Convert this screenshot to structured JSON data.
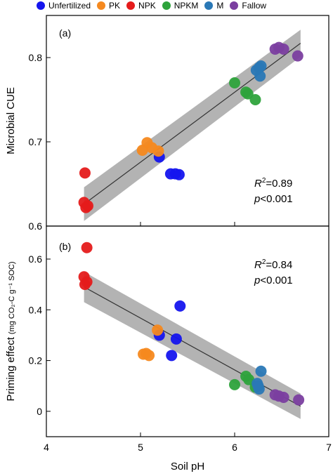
{
  "legend": {
    "items": [
      {
        "label": "Unfertilized",
        "color": "#1515ee"
      },
      {
        "label": "PK",
        "color": "#f5891f"
      },
      {
        "label": "NPK",
        "color": "#e51b1b"
      },
      {
        "label": "NPKM",
        "color": "#2ea33c"
      },
      {
        "label": "M",
        "color": "#2a78b6"
      },
      {
        "label": "Fallow",
        "color": "#7b3fa0"
      }
    ]
  },
  "chart_data": [
    {
      "type": "scatter",
      "panel_label": "(a)",
      "title": "",
      "xlabel": "",
      "ylabel": "Microbial CUE",
      "xlim": [
        4,
        7
      ],
      "ylim": [
        0.6,
        0.85
      ],
      "y_ticks": [
        "0.6",
        "0.7",
        "0.8"
      ],
      "grid": false,
      "stats": {
        "r2_symbol": "R",
        "r2_exp": "2",
        "r2_value": "=0.89",
        "p_symbol": "p",
        "p_value": "<0.001"
      },
      "fit": {
        "x": [
          4.4,
          6.7
        ],
        "y": [
          0.626,
          0.817
        ],
        "band_lower": [
          0.606,
          0.801
        ],
        "band_upper": [
          0.646,
          0.833
        ]
      },
      "series": [
        {
          "name": "Unfertilized",
          "points": [
            [
              5.2,
              0.682
            ],
            [
              5.32,
              0.662
            ],
            [
              5.37,
              0.662
            ],
            [
              5.41,
              0.661
            ]
          ]
        },
        {
          "name": "PK",
          "points": [
            [
              5.02,
              0.69
            ],
            [
              5.07,
              0.699
            ],
            [
              5.12,
              0.693
            ],
            [
              5.19,
              0.689
            ]
          ]
        },
        {
          "name": "NPK",
          "points": [
            [
              4.41,
              0.663
            ],
            [
              4.4,
              0.628
            ],
            [
              4.42,
              0.622
            ],
            [
              4.44,
              0.624
            ]
          ]
        },
        {
          "name": "NPKM",
          "points": [
            [
              6.0,
              0.77
            ],
            [
              6.12,
              0.759
            ],
            [
              6.14,
              0.757
            ],
            [
              6.22,
              0.75
            ]
          ]
        },
        {
          "name": "M",
          "points": [
            [
              6.23,
              0.785
            ],
            [
              6.26,
              0.788
            ],
            [
              6.28,
              0.79
            ],
            [
              6.27,
              0.778
            ]
          ]
        },
        {
          "name": "Fallow",
          "points": [
            [
              6.43,
              0.81
            ],
            [
              6.47,
              0.812
            ],
            [
              6.52,
              0.81
            ],
            [
              6.67,
              0.802
            ]
          ]
        }
      ]
    },
    {
      "type": "scatter",
      "panel_label": "(b)",
      "title": "",
      "xlabel": "Soil pH",
      "ylabel": "Priming effect",
      "ylabel_units": "(mg CO₂-C g⁻¹ SOC)",
      "xlim": [
        4,
        7
      ],
      "ylim": [
        -0.1,
        0.73
      ],
      "x_ticks": [
        "4",
        "5",
        "6",
        "7"
      ],
      "y_ticks": [
        "0",
        "0.2",
        "0.4",
        "0.6"
      ],
      "grid": false,
      "stats": {
        "r2_symbol": "R",
        "r2_exp": "2",
        "r2_value": "=0.84",
        "p_symbol": "p",
        "p_value": "<0.001"
      },
      "fit": {
        "x": [
          4.4,
          6.7
        ],
        "y": [
          0.49,
          0.02
        ],
        "band_lower": [
          0.43,
          -0.03
        ],
        "band_upper": [
          0.55,
          0.07
        ]
      },
      "series": [
        {
          "name": "Unfertilized",
          "points": [
            [
              5.2,
              0.3
            ],
            [
              5.33,
              0.22
            ],
            [
              5.42,
              0.415
            ],
            [
              5.38,
              0.285
            ]
          ]
        },
        {
          "name": "PK",
          "points": [
            [
              5.03,
              0.225
            ],
            [
              5.06,
              0.228
            ],
            [
              5.09,
              0.22
            ],
            [
              5.18,
              0.32
            ]
          ]
        },
        {
          "name": "NPK",
          "points": [
            [
              4.43,
              0.645
            ],
            [
              4.4,
              0.53
            ],
            [
              4.41,
              0.5
            ],
            [
              4.43,
              0.51
            ]
          ]
        },
        {
          "name": "NPKM",
          "points": [
            [
              6.0,
              0.105
            ],
            [
              6.12,
              0.138
            ],
            [
              6.15,
              0.125
            ],
            [
              6.22,
              0.095
            ]
          ]
        },
        {
          "name": "M",
          "points": [
            [
              6.28,
              0.158
            ],
            [
              6.25,
              0.1
            ],
            [
              6.26,
              0.088
            ],
            [
              6.24,
              0.11
            ]
          ]
        },
        {
          "name": "Fallow",
          "points": [
            [
              6.43,
              0.065
            ],
            [
              6.47,
              0.06
            ],
            [
              6.52,
              0.055
            ],
            [
              6.68,
              0.045
            ]
          ]
        }
      ]
    }
  ]
}
